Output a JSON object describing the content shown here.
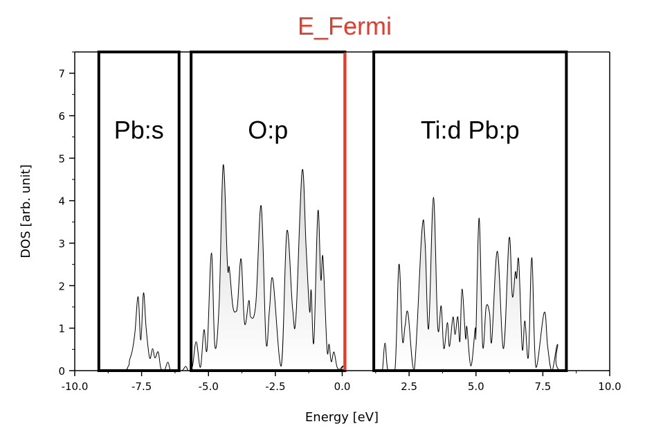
{
  "chart_data": {
    "type": "area",
    "title": "E_Fermi",
    "title_color": "#e8392b",
    "xlabel": "Energy [eV]",
    "ylabel": "DOS [arb. unit]",
    "xlim": [
      -10.0,
      10.0
    ],
    "ylim": [
      0,
      7.5
    ],
    "xticks": [
      -10.0,
      -7.5,
      -5.0,
      -2.5,
      0.0,
      2.5,
      5.0,
      7.5,
      10.0
    ],
    "xtick_labels": [
      "-10.0",
      "-7.5",
      "-5.0",
      "-2.5",
      "0.0",
      "2.5",
      "5.0",
      "7.5",
      "10.0"
    ],
    "xminor_ticks": [
      -8.75,
      -6.25,
      -3.75,
      -1.25,
      1.25,
      3.75,
      6.25,
      8.75
    ],
    "yticks": [
      0,
      1,
      2,
      3,
      4,
      5,
      6,
      7
    ],
    "ytick_labels": [
      "0",
      "1",
      "2",
      "3",
      "4",
      "5",
      "6",
      "7"
    ],
    "yminor_ticks": [
      0.5,
      1.5,
      2.5,
      3.5,
      4.5,
      5.5,
      6.5,
      7.5
    ],
    "grid": false,
    "fermi_level": 0.1,
    "fermi_color": "#e8392b",
    "curve_color": "#000000",
    "fill_color_top": "#d8d8d8",
    "fill_color_bottom": "#ffffff",
    "regions": [
      {
        "label": "Pb:s",
        "x_start": -9.1,
        "x_end": -6.1
      },
      {
        "label": "O:p",
        "x_start": -5.65,
        "x_end": 0.1
      },
      {
        "label": "Ti:d Pb:p",
        "x_start": 1.18,
        "x_end": 8.38
      }
    ],
    "series": [
      {
        "name": "DOS",
        "x": [
          -10.0,
          -8.3,
          -8.0,
          -7.95,
          -7.85,
          -7.75,
          -7.63,
          -7.53,
          -7.43,
          -7.33,
          -7.2,
          -7.09,
          -7.0,
          -6.88,
          -6.78,
          -6.65,
          -6.52,
          -6.42,
          -6.3,
          -6.0,
          -5.85,
          -5.75,
          -5.6,
          -5.46,
          -5.3,
          -5.17,
          -5.05,
          -4.89,
          -4.76,
          -4.6,
          -4.45,
          -4.29,
          -4.22,
          -4.09,
          -3.98,
          -3.91,
          -3.78,
          -3.65,
          -3.49,
          -3.42,
          -3.23,
          -3.03,
          -2.85,
          -2.72,
          -2.59,
          -2.28,
          -2.07,
          -1.86,
          -1.73,
          -1.5,
          -1.35,
          -1.22,
          -1.16,
          -1.06,
          -0.91,
          -0.8,
          -0.72,
          -0.57,
          -0.49,
          -0.41,
          -0.31,
          -0.2,
          -0.1,
          0.03,
          0.1,
          1.4,
          1.5,
          1.6,
          1.71,
          1.97,
          2.12,
          2.25,
          2.35,
          2.46,
          2.69,
          2.98,
          3.1,
          3.23,
          3.41,
          3.57,
          3.7,
          3.8,
          3.93,
          4.01,
          4.14,
          4.22,
          4.32,
          4.4,
          4.48,
          4.61,
          4.66,
          4.81,
          4.97,
          5.0,
          5.12,
          5.25,
          5.38,
          5.51,
          5.59,
          5.8,
          6.03,
          6.24,
          6.36,
          6.47,
          6.52,
          6.6,
          6.73,
          6.83,
          6.96,
          7.09,
          7.24,
          7.55,
          7.68,
          7.84,
          8.05,
          8.15,
          9.9,
          10.0
        ],
        "y": [
          0,
          0,
          0.1,
          0.25,
          0.47,
          0.9,
          1.74,
          0.72,
          1.83,
          1.0,
          0.3,
          0.52,
          0.3,
          0.44,
          0.05,
          0,
          0.2,
          0,
          0,
          0,
          0.1,
          0,
          0.1,
          0.68,
          0.08,
          0.96,
          0.52,
          2.77,
          0.57,
          1.6,
          4.84,
          2.48,
          2.42,
          1.52,
          1.39,
          1.58,
          2.63,
          1.11,
          1.65,
          1.26,
          1.58,
          3.88,
          0.69,
          1.44,
          2.14,
          0.11,
          3.28,
          1.5,
          1.26,
          4.7,
          2.9,
          1.4,
          1.89,
          0.68,
          3.75,
          2.15,
          2.66,
          0.52,
          0.62,
          0.21,
          0.44,
          0.1,
          0.03,
          0.11,
          0,
          0,
          0,
          0.65,
          0,
          0,
          2.5,
          0.73,
          1.06,
          1.35,
          0,
          3.3,
          2.99,
          0.99,
          4.08,
          1.03,
          1.52,
          0.52,
          1.13,
          0.57,
          1.26,
          0.85,
          1.27,
          0.69,
          1.92,
          0.77,
          1.03,
          0.11,
          0.99,
          0.9,
          3.59,
          0.6,
          1.5,
          1.35,
          0.7,
          2.81,
          0.52,
          3.12,
          1.75,
          2.32,
          2.17,
          2.58,
          0.52,
          1.17,
          0.33,
          2.66,
          0.08,
          1.37,
          0.57,
          0,
          0.62,
          0,
          0,
          0.05
        ]
      }
    ]
  }
}
